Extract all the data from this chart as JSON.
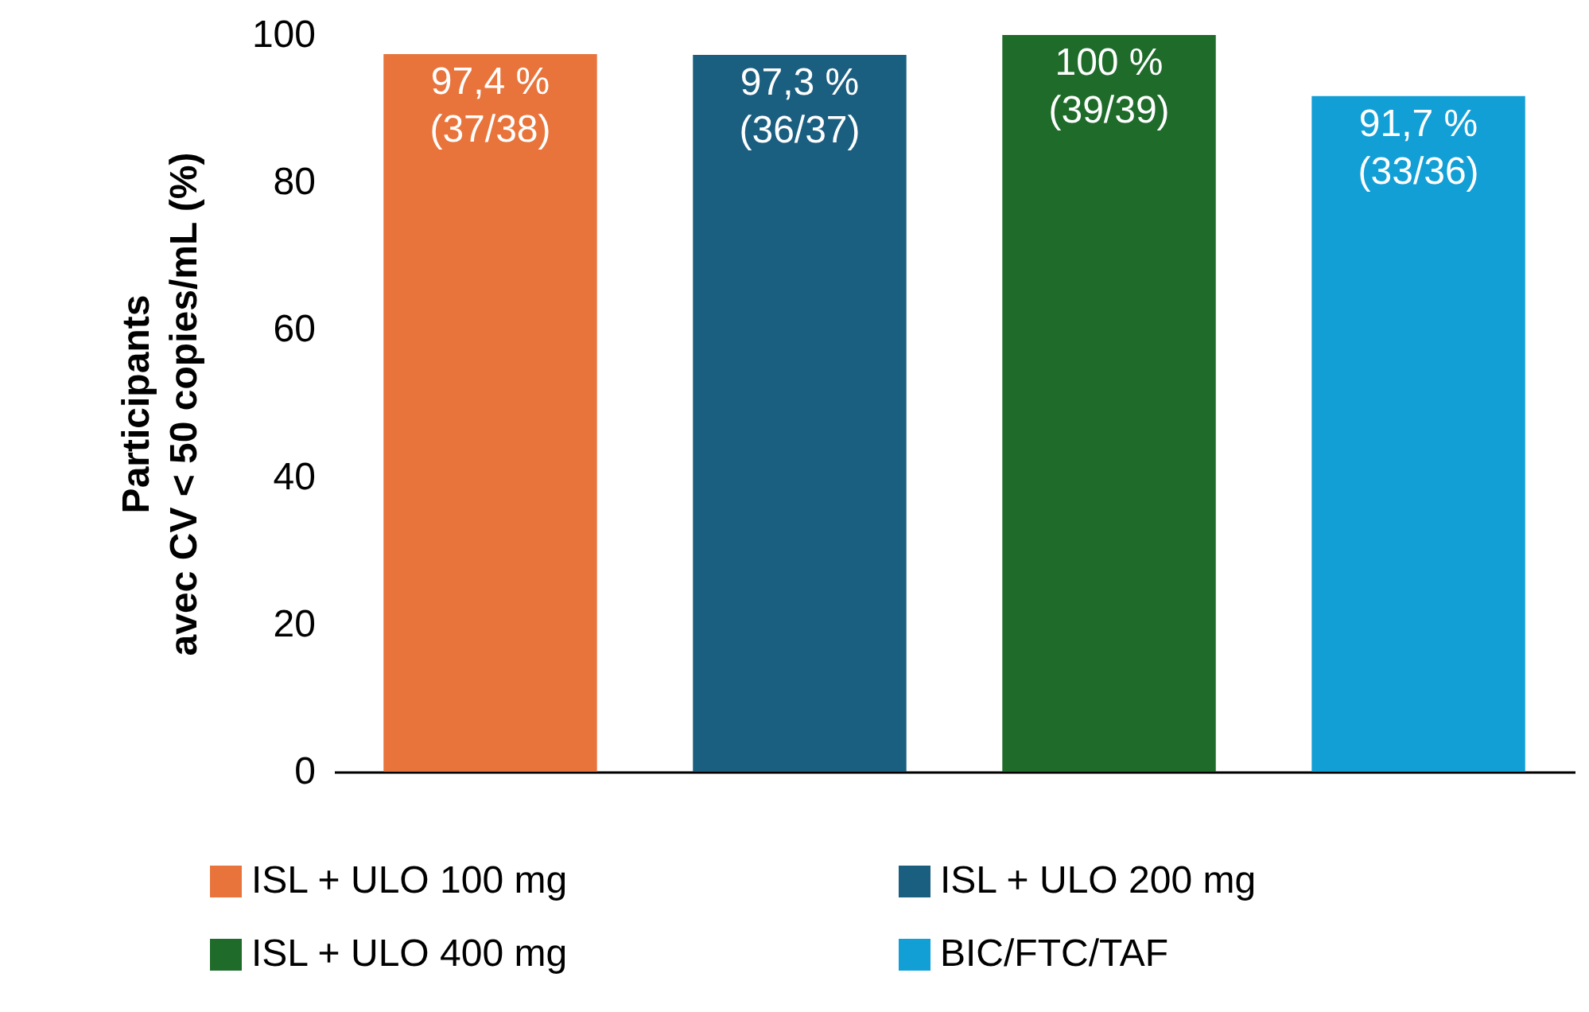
{
  "chart_data": {
    "type": "bar",
    "ylabel": "Participants\navec CV < 50 copies/mL (%)",
    "categories": [
      null,
      null,
      null,
      null
    ],
    "series": [
      {
        "name": "ISL + ULO 100 mg",
        "color": "#e8743b",
        "values": [
          97.4,
          null,
          null,
          null
        ],
        "value_labels": [
          "97,4 %\n(37/38)",
          null,
          null,
          null
        ]
      },
      {
        "name": "ISL + ULO 200 mg",
        "color": "#1a5e80",
        "values": [
          null,
          97.3,
          null,
          null
        ],
        "value_labels": [
          null,
          "97,3 %\n(36/37)",
          null,
          null
        ]
      },
      {
        "name": "ISL + ULO 400 mg",
        "color": "#1e6b2a",
        "values": [
          null,
          null,
          100,
          null
        ],
        "value_labels": [
          null,
          null,
          "100 %\n(39/39)",
          null
        ]
      },
      {
        "name": "BIC/FTC/TAF",
        "color": "#129fd6",
        "values": [
          null,
          null,
          null,
          91.7
        ],
        "value_labels": [
          null,
          null,
          null,
          "91,7 %\n(33/36)"
        ]
      }
    ],
    "ylim": [
      0,
      100
    ],
    "yticks": [
      0,
      20,
      40,
      60,
      80,
      100
    ],
    "grid": false,
    "legend": "bottom",
    "tick_labels": "y"
  }
}
